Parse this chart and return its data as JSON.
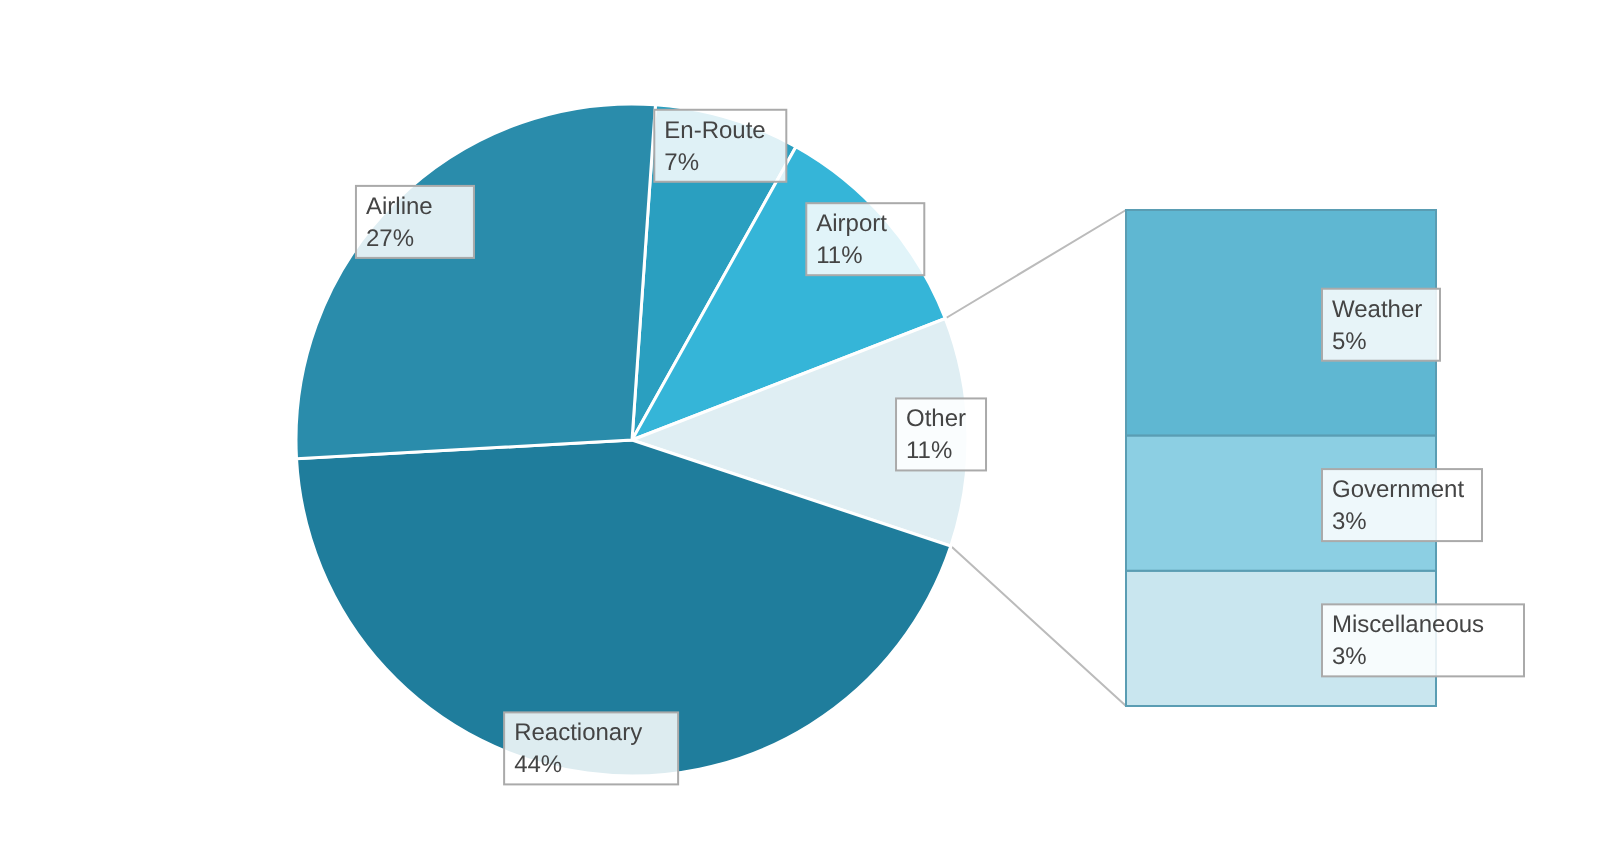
{
  "chart_data": [
    {
      "type": "pie",
      "categories": [
        "En-Route",
        "Airport",
        "Other",
        "Reactionary",
        "Airline"
      ],
      "values": [
        7,
        11,
        11,
        44,
        27
      ],
      "colors": [
        "#2a9fc0",
        "#35b5d8",
        "#dfeef3",
        "#1f7d9c",
        "#2a8cab"
      ],
      "value_labels": [
        "7%",
        "11%",
        "11%",
        "44%",
        "27%"
      ]
    },
    {
      "type": "bar",
      "stacked": true,
      "categories": [
        null
      ],
      "series": [
        {
          "name": "Miscellaneous",
          "color": "#c9e6ef",
          "values": [
            3
          ],
          "value_labels": [
            "3%"
          ]
        },
        {
          "name": "Government",
          "color": "#8ccfe3",
          "values": [
            3
          ],
          "value_labels": [
            "3%"
          ]
        },
        {
          "name": "Weather",
          "color": "#5fb7d2",
          "values": [
            5
          ],
          "value_labels": [
            "5%"
          ]
        }
      ]
    }
  ]
}
